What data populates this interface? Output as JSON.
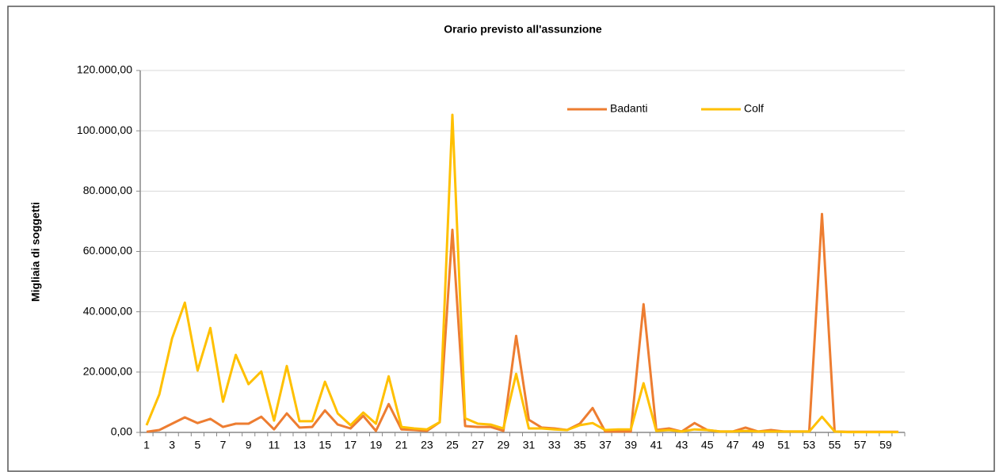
{
  "chart_data": {
    "type": "line",
    "title": "Orario previsto all'assunzione",
    "y_label": "Migliaia di soggetti",
    "categories": [
      1,
      null,
      3,
      null,
      5,
      null,
      7,
      null,
      9,
      null,
      11,
      null,
      13,
      null,
      15,
      null,
      17,
      null,
      19,
      null,
      21,
      null,
      23,
      null,
      25,
      null,
      27,
      null,
      29,
      null,
      31,
      null,
      33,
      null,
      35,
      null,
      37,
      null,
      39,
      null,
      41,
      null,
      43,
      null,
      45,
      null,
      47,
      null,
      49,
      null,
      51,
      null,
      53,
      null,
      55,
      null,
      57,
      null,
      59,
      null
    ],
    "series": [
      {
        "name": "Badanti",
        "color": "#ED7D31",
        "values": [
          200,
          800,
          2900,
          5000,
          3100,
          4500,
          1800,
          2900,
          2900,
          5200,
          1000,
          6300,
          1600,
          1800,
          7300,
          2600,
          1300,
          5500,
          500,
          9400,
          1000,
          800,
          500,
          3400,
          67200,
          2100,
          1800,
          1800,
          500,
          32000,
          4200,
          1600,
          1300,
          800,
          2900,
          8100,
          300,
          300,
          300,
          42500,
          800,
          1300,
          300,
          3100,
          800,
          300,
          300,
          1600,
          300,
          800,
          300,
          300,
          300,
          72400,
          300,
          200,
          200,
          200,
          200,
          200
        ]
      },
      {
        "name": "Colf",
        "color": "#FFC000",
        "values": [
          2400,
          12600,
          31200,
          43000,
          20500,
          34600,
          10200,
          25700,
          16000,
          20200,
          3900,
          22000,
          3700,
          3700,
          16800,
          6300,
          2400,
          6600,
          2900,
          18600,
          1800,
          1300,
          1000,
          3400,
          105300,
          4700,
          2900,
          2600,
          1300,
          19400,
          1300,
          1300,
          1000,
          800,
          2400,
          3100,
          800,
          1000,
          1000,
          16300,
          500,
          800,
          300,
          1000,
          800,
          300,
          300,
          500,
          300,
          300,
          300,
          300,
          300,
          5200,
          300,
          100,
          100,
          100,
          100,
          100
        ]
      }
    ],
    "ylim": [
      0,
      120000
    ],
    "yticks": [
      {
        "value": 0,
        "label": "0,00"
      },
      {
        "value": 20000,
        "label": "20.000,00"
      },
      {
        "value": 40000,
        "label": "40.000,00"
      },
      {
        "value": 60000,
        "label": "60.000,00"
      },
      {
        "value": 80000,
        "label": "80.000,00"
      },
      {
        "value": 100000,
        "label": "100.000,00"
      },
      {
        "value": 120000,
        "label": "120.000,00"
      }
    ],
    "grid": true,
    "legend": "top-right"
  }
}
